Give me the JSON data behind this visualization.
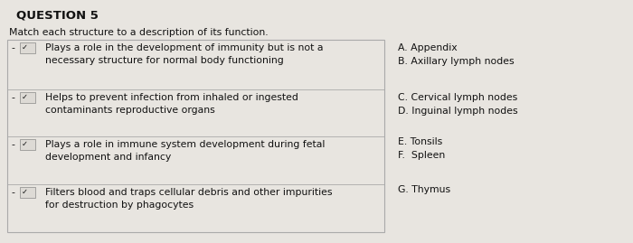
{
  "title": "QUESTION 5",
  "subtitle": "Match each structure to a description of its function.",
  "background_color": "#e8e5e0",
  "box_border_color": "#aaaaaa",
  "left_items": [
    {
      "line1": "Plays a role in the development of immunity but is not a",
      "line2": "necessary structure for normal body functioning"
    },
    {
      "line1": "Helps to prevent infection from inhaled or ingested",
      "line2": "contaminants reproductive organs"
    },
    {
      "line1": "Plays a role in immune system development during fetal",
      "line2": "development and infancy"
    },
    {
      "line1": "Filters blood and traps cellular debris and other impurities",
      "line2": "for destruction by phagocytes"
    }
  ],
  "right_items": [
    "A. Appendix",
    "B. Axillary lymph nodes",
    "C. Cervical lymph nodes",
    "D. Inguinal lymph nodes",
    "E. Tonsils",
    "F.  Spleen",
    "G. Thymus"
  ],
  "font_color": "#111111",
  "title_fontsize": 9.5,
  "body_fontsize": 7.8
}
